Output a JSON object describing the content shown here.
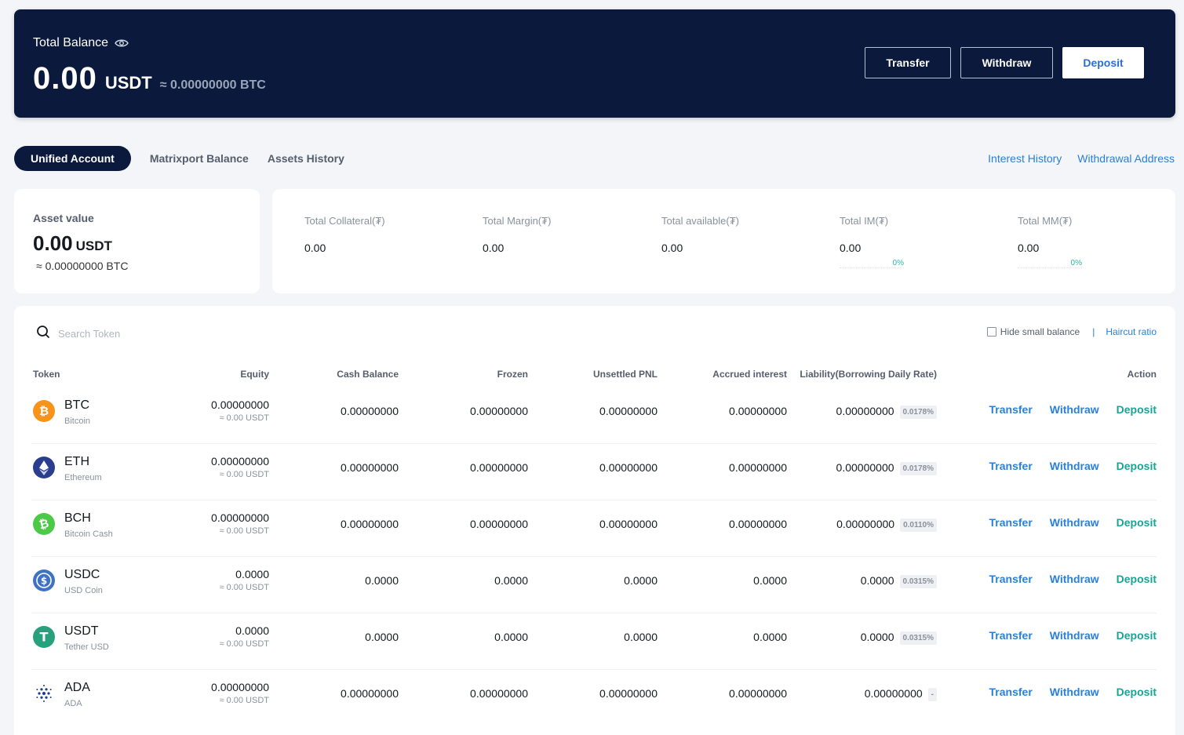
{
  "hero": {
    "title": "Total Balance",
    "amount": "0.00",
    "unit": "USDT",
    "btc_equiv": "≈ 0.00000000 BTC",
    "buttons": {
      "transfer": "Transfer",
      "withdraw": "Withdraw",
      "deposit": "Deposit"
    }
  },
  "tabs": [
    "Unified Account",
    "Matrixport Balance",
    "Assets History"
  ],
  "links": {
    "interest_history": "Interest History",
    "withdrawal_address": "Withdrawal Address"
  },
  "asset_value": {
    "title": "Asset value",
    "amount": "0.00",
    "unit": "USDT",
    "btc_equiv": "≈ 0.00000000 BTC"
  },
  "stats": [
    {
      "label": "Total Collateral(₮)",
      "value": "0.00",
      "pct": ""
    },
    {
      "label": "Total Margin(₮)",
      "value": "0.00",
      "pct": ""
    },
    {
      "label": "Total available(₮)",
      "value": "0.00",
      "pct": ""
    },
    {
      "label": "Total IM(₮)",
      "value": "0.00",
      "pct": "0%"
    },
    {
      "label": "Total MM(₮)",
      "value": "0.00",
      "pct": "0%"
    }
  ],
  "search": {
    "placeholder": "Search Token"
  },
  "tools": {
    "hide_small": "Hide small balance",
    "separator": "|",
    "haircut": "Haircut ratio"
  },
  "columns": {
    "token": "Token",
    "equity": "Equity",
    "cash": "Cash Balance",
    "frozen": "Frozen",
    "pnl": "Unsettled PNL",
    "interest": "Accrued interest",
    "liability": "Liability(Borrowing Daily Rate)",
    "action": "Action"
  },
  "actions": {
    "transfer": "Transfer",
    "withdraw": "Withdraw",
    "deposit": "Deposit"
  },
  "rows": [
    {
      "symbol": "BTC",
      "name": "Bitcoin",
      "equity": "0.00000000",
      "equity_usdt": "≈ 0.00 USDT",
      "cash": "0.00000000",
      "frozen": "0.00000000",
      "pnl": "0.00000000",
      "interest": "0.00000000",
      "liability": "0.00000000",
      "rate": "0.0178%",
      "icon": "btc-icon",
      "color": "#f7931a"
    },
    {
      "symbol": "ETH",
      "name": "Ethereum",
      "equity": "0.00000000",
      "equity_usdt": "≈ 0.00 USDT",
      "cash": "0.00000000",
      "frozen": "0.00000000",
      "pnl": "0.00000000",
      "interest": "0.00000000",
      "liability": "0.00000000",
      "rate": "0.0178%",
      "icon": "eth-icon",
      "color": "#2b3d8f"
    },
    {
      "symbol": "BCH",
      "name": "Bitcoin Cash",
      "equity": "0.00000000",
      "equity_usdt": "≈ 0.00 USDT",
      "cash": "0.00000000",
      "frozen": "0.00000000",
      "pnl": "0.00000000",
      "interest": "0.00000000",
      "liability": "0.00000000",
      "rate": "0.0110%",
      "icon": "bch-icon",
      "color": "#4cc947"
    },
    {
      "symbol": "USDC",
      "name": "USD Coin",
      "equity": "0.0000",
      "equity_usdt": "≈ 0.00 USDT",
      "cash": "0.0000",
      "frozen": "0.0000",
      "pnl": "0.0000",
      "interest": "0.0000",
      "liability": "0.0000",
      "rate": "0.0315%",
      "icon": "usdc-icon",
      "color": "#3e73c4"
    },
    {
      "symbol": "USDT",
      "name": "Tether USD",
      "equity": "0.0000",
      "equity_usdt": "≈ 0.00 USDT",
      "cash": "0.0000",
      "frozen": "0.0000",
      "pnl": "0.0000",
      "interest": "0.0000",
      "liability": "0.0000",
      "rate": "0.0315%",
      "icon": "usdt-icon",
      "color": "#26a17b"
    },
    {
      "symbol": "ADA",
      "name": "ADA",
      "equity": "0.00000000",
      "equity_usdt": "≈ 0.00 USDT",
      "cash": "0.00000000",
      "frozen": "0.00000000",
      "pnl": "0.00000000",
      "interest": "0.00000000",
      "liability": "0.00000000",
      "rate": "-",
      "icon": "ada-icon",
      "color": "#1b3a8a"
    }
  ]
}
